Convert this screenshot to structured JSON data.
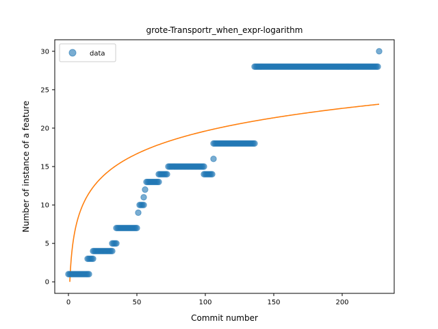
{
  "chart_data": {
    "type": "scatter",
    "title": "grote-Transportr_when_expr-logarithm",
    "xlabel": "Commit number",
    "ylabel": "Number of instance of a feature",
    "xlim": [
      -10,
      238
    ],
    "ylim": [
      -1.5,
      31.5
    ],
    "xticks": [
      0,
      50,
      100,
      150,
      200
    ],
    "yticks": [
      0,
      5,
      10,
      15,
      20,
      25,
      30
    ],
    "grid": false,
    "legend": {
      "position": "top-left",
      "entries": [
        "data"
      ]
    },
    "colors": {
      "data": "#1f77b4",
      "fit": "#ff7f0e"
    },
    "series": [
      {
        "name": "data",
        "kind": "scatter",
        "segments": [
          {
            "x_start": 0,
            "x_end": 15,
            "y": 1
          },
          {
            "x_start": 14,
            "x_end": 18,
            "y": 3
          },
          {
            "x_start": 18,
            "x_end": 32,
            "y": 4
          },
          {
            "x_start": 32,
            "x_end": 35,
            "y": 5
          },
          {
            "x_start": 35,
            "x_end": 50,
            "y": 7
          },
          {
            "x_start": 51,
            "x_end": 51,
            "y": 9
          },
          {
            "x_start": 52,
            "x_end": 55,
            "y": 10
          },
          {
            "x_start": 55,
            "x_end": 55,
            "y": 11
          },
          {
            "x_start": 56,
            "x_end": 56,
            "y": 12
          },
          {
            "x_start": 57,
            "x_end": 66,
            "y": 13
          },
          {
            "x_start": 66,
            "x_end": 72,
            "y": 14
          },
          {
            "x_start": 73,
            "x_end": 99,
            "y": 15
          },
          {
            "x_start": 99,
            "x_end": 105,
            "y": 14
          },
          {
            "x_start": 106,
            "x_end": 106,
            "y": 16
          },
          {
            "x_start": 106,
            "x_end": 136,
            "y": 18
          },
          {
            "x_start": 136,
            "x_end": 226,
            "y": 28
          },
          {
            "x_start": 227,
            "x_end": 227,
            "y": 30
          }
        ]
      },
      {
        "name": "fit",
        "kind": "line",
        "equation": "y = 4.26 * ln(x + 1)",
        "x_range": [
          1,
          227
        ]
      }
    ]
  }
}
